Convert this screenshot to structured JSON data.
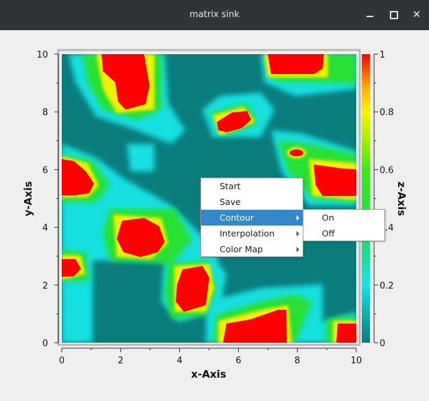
{
  "window": {
    "title": "matrix sink",
    "controls": [
      "minimize-icon",
      "maximize-icon",
      "close-icon"
    ]
  },
  "plot": {
    "xlabel": "x-Axis",
    "ylabel": "y-Axis",
    "zlabel": "z-Axis",
    "xticks": [
      "0",
      "2",
      "4",
      "6",
      "8",
      "10"
    ],
    "yticks": [
      "0",
      "2",
      "4",
      "6",
      "8",
      "10"
    ],
    "colorbar_ticks": [
      "0",
      "0.2",
      "0.4",
      "0.6",
      "0.8",
      "1"
    ]
  },
  "chart_data": {
    "type": "heatmap",
    "title": "",
    "xlabel": "x-Axis",
    "ylabel": "y-Axis",
    "zlabel": "z-Axis",
    "xlim": [
      0,
      10
    ],
    "ylim": [
      0,
      10
    ],
    "zlim": [
      0,
      1
    ],
    "colormap": [
      "#0b7c7c",
      "#13e0e0",
      "#1ed37a",
      "#2ee01a",
      "#a8f000",
      "#f2f200",
      "#ffb000",
      "#ff4a00",
      "#ff0000"
    ],
    "peaks": [
      {
        "x": 1.9,
        "y": 9.6,
        "z": 1.0
      },
      {
        "x": 2.1,
        "y": 8.9,
        "z": 1.0
      },
      {
        "x": 8.0,
        "y": 9.8,
        "z": 1.0
      },
      {
        "x": 6.0,
        "y": 7.8,
        "z": 1.0
      },
      {
        "x": 0.4,
        "y": 5.8,
        "z": 1.0
      },
      {
        "x": 9.3,
        "y": 5.8,
        "z": 1.0
      },
      {
        "x": 8.0,
        "y": 6.6,
        "z": 0.9
      },
      {
        "x": 2.8,
        "y": 3.7,
        "z": 1.0
      },
      {
        "x": 0.3,
        "y": 2.6,
        "z": 0.95
      },
      {
        "x": 4.5,
        "y": 1.8,
        "z": 1.0
      },
      {
        "x": 6.8,
        "y": 0.4,
        "z": 1.0
      },
      {
        "x": 9.7,
        "y": 0.4,
        "z": 1.0
      },
      {
        "x": 3.1,
        "y": 6.4,
        "z": 0.3
      },
      {
        "x": 4.9,
        "y": 4.0,
        "z": 0.45
      }
    ]
  },
  "context_menu": {
    "items": [
      {
        "label": "Start",
        "has_submenu": false
      },
      {
        "label": "Save",
        "has_submenu": false
      },
      {
        "label": "Contour",
        "has_submenu": true,
        "highlighted": true
      },
      {
        "label": "Interpolation",
        "has_submenu": true
      },
      {
        "label": "Color Map",
        "has_submenu": true
      }
    ],
    "submenu": {
      "parent": "Contour",
      "items": [
        {
          "label": "On"
        },
        {
          "label": "Off"
        }
      ]
    }
  },
  "colors": {
    "titlebar": "#2f3438",
    "background": "#efefef",
    "menu_highlight": "#3588c7"
  }
}
